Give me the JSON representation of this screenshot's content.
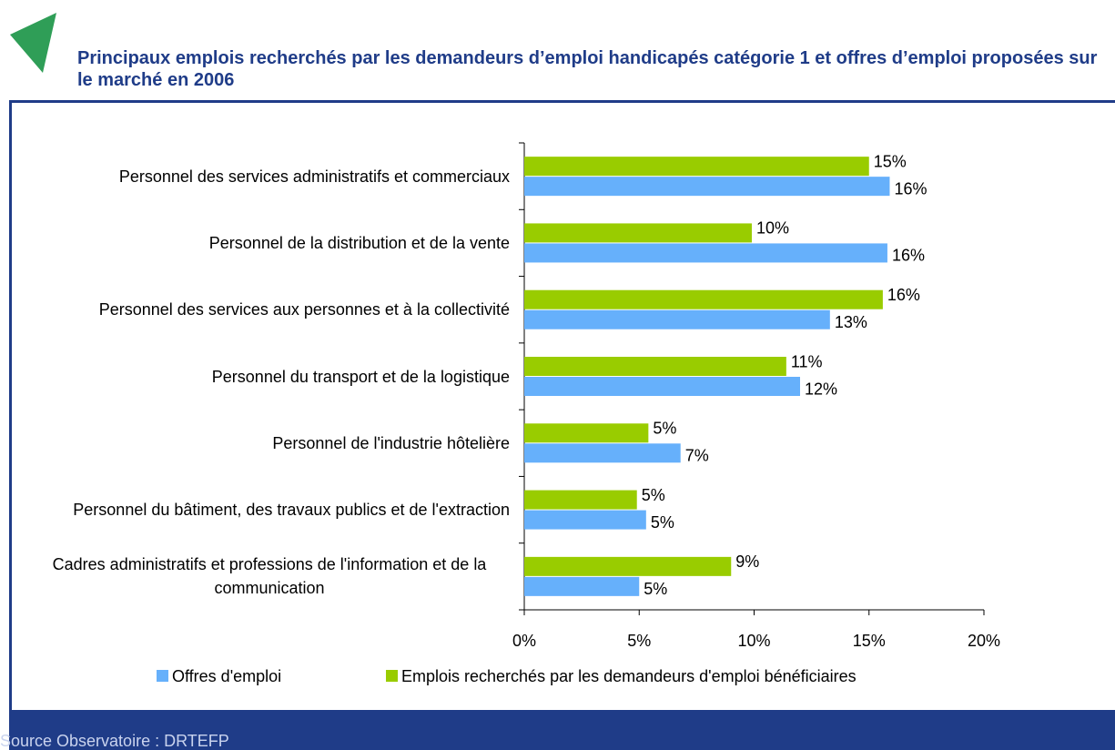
{
  "chart_data": {
    "type": "barh",
    "title": "Principaux emplois recherchés par les demandeurs d’emploi handicapés catégorie 1 et offres d’emploi proposées sur le marché en 2006",
    "source": "Source Observatoire : DRTEFP",
    "categories": [
      "Personnel des services administratifs et commerciaux",
      "Personnel de la distribution et de la vente",
      "Personnel des services aux personnes et à la collectivité",
      "Personnel du transport et de la logistique",
      "Personnel de l'industrie hôtelière",
      "Personnel du bâtiment, des travaux publics et de l'extraction",
      "Cadres administratifs et professions de l'information et de la communication"
    ],
    "series": [
      {
        "name": "Offres d'emploi",
        "color": "#66b0fb",
        "values": [
          15.9,
          15.8,
          13.3,
          12.0,
          6.8,
          5.3,
          5.0
        ],
        "value_labels": [
          "16%",
          "16%",
          "13%",
          "12%",
          "7%",
          "5%",
          "5%"
        ]
      },
      {
        "name": "Emplois recherchés par les demandeurs d'emploi bénéficiaires",
        "color": "#99cc00",
        "values": [
          15.0,
          9.9,
          15.6,
          11.4,
          5.4,
          4.9,
          9.0
        ],
        "value_labels": [
          "15%",
          "10%",
          "16%",
          "11%",
          "5%",
          "5%",
          "9%"
        ]
      }
    ],
    "xlim": [
      0,
      20
    ],
    "xticks": [
      {
        "value": 0,
        "label": "0%"
      },
      {
        "value": 5,
        "label": "5%"
      },
      {
        "value": 10,
        "label": "10%"
      },
      {
        "value": 15,
        "label": "15%"
      },
      {
        "value": 20,
        "label": "20%"
      }
    ]
  }
}
